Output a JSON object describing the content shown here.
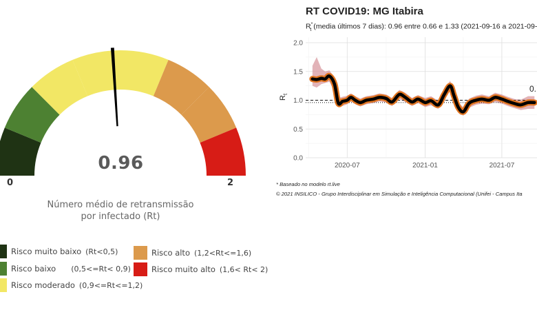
{
  "gauge": {
    "value": 0.96,
    "value_text": "0.96",
    "min": 0,
    "max": 2,
    "min_label": "0",
    "max_label": "2",
    "caption_line1": "Número médio de retransmissão",
    "caption_line2": "por infectado (Rt)",
    "bands": [
      {
        "from": 0.0,
        "to": 0.25,
        "color": "#1f3314"
      },
      {
        "from": 0.25,
        "to": 0.5,
        "color": "#4d8132"
      },
      {
        "from": 0.5,
        "to": 0.75,
        "color": "#f2e765"
      },
      {
        "from": 0.75,
        "to": 1.0,
        "color": "#f2e765"
      },
      {
        "from": 1.0,
        "to": 1.25,
        "color": "#f2e765"
      },
      {
        "from": 1.25,
        "to": 1.5,
        "color": "#dc9a4c"
      },
      {
        "from": 1.5,
        "to": 1.75,
        "color": "#dc9a4c"
      },
      {
        "from": 1.75,
        "to": 2.0,
        "color": "#d71c16"
      }
    ],
    "needle_color": "#000000"
  },
  "legend": [
    {
      "label": "Risco muito baixo",
      "range": "(Rt<0,5)",
      "color": "#1f3314"
    },
    {
      "label": "Risco baixo",
      "range": "(0,5<=Rt< 0,9)",
      "color": "#4d8132"
    },
    {
      "label": "Risco moderado",
      "range": "(0,9<=Rt<=1,2)",
      "color": "#f2e765"
    },
    {
      "label": "Risco alto",
      "range": "(1,2<Rt<=1,6)",
      "color": "#dc9a4c"
    },
    {
      "label": "Risco muito alto",
      "range": "(1,6< Rt< 2)",
      "color": "#d71c16"
    }
  ],
  "chart": {
    "title": "RT COVID19: MG Itabira",
    "subtitle_symbol": "R",
    "subtitle_sub": "t",
    "subtitle_sup": "*",
    "subtitle_text": " (media últimos 7 dias): 0.96 entre 0.66 e 1.33 (2021-09-16 a 2021-09-",
    "ylabel_main": "R",
    "ylabel_sub": "t",
    "end_label": "0.",
    "note1": "* Baseado no modelo rt.live",
    "note2": "© 2021 INSILICO - Grupo Interdisciplinar em Simulação e Inteligência Computacional (Unifei - Campus Ita"
  },
  "chart_data": {
    "type": "line",
    "title": "RT COVID19: MG Itabira",
    "ylabel": "Rt",
    "x_ticks": [
      "2020-07",
      "2021-01",
      "2021-07"
    ],
    "y_ticks": [
      "0.0",
      "0.5",
      "1.0",
      "1.5",
      "2.0"
    ],
    "ylim": [
      0,
      2.0
    ],
    "xlim": [
      "2020-03-25",
      "2021-09-22"
    ],
    "reference_lines": [
      {
        "y": 1.0,
        "style": "dashed"
      },
      {
        "y": 0.96,
        "style": "dotted"
      }
    ],
    "grid": true,
    "series": [
      {
        "line_color": "#000000",
        "outline_color": "#e0731e",
        "band_color": "#d89aa0",
        "x": [
          "2020-04-10",
          "2020-04-20",
          "2020-05-01",
          "2020-05-10",
          "2020-05-20",
          "2020-06-01",
          "2020-06-10",
          "2020-06-20",
          "2020-07-01",
          "2020-07-10",
          "2020-07-20",
          "2020-08-01",
          "2020-08-15",
          "2020-09-01",
          "2020-09-15",
          "2020-10-01",
          "2020-10-15",
          "2020-11-01",
          "2020-11-15",
          "2020-12-01",
          "2020-12-15",
          "2021-01-01",
          "2021-01-15",
          "2021-02-01",
          "2021-02-15",
          "2021-03-01",
          "2021-03-10",
          "2021-03-20",
          "2021-04-01",
          "2021-04-15",
          "2021-05-01",
          "2021-05-15",
          "2021-06-01",
          "2021-06-15",
          "2021-07-01",
          "2021-07-15",
          "2021-08-01",
          "2021-08-15",
          "2021-09-01",
          "2021-09-16"
        ],
        "y": [
          1.37,
          1.36,
          1.38,
          1.37,
          1.42,
          1.28,
          0.95,
          0.98,
          1.0,
          1.05,
          1.0,
          0.96,
          1.0,
          1.02,
          1.05,
          1.03,
          0.97,
          1.1,
          1.05,
          0.97,
          1.02,
          0.96,
          0.99,
          0.92,
          1.1,
          1.25,
          1.08,
          0.88,
          0.8,
          0.95,
          1.0,
          1.02,
          1.0,
          1.05,
          1.02,
          0.98,
          0.94,
          0.92,
          0.96,
          0.96
        ],
        "lower": [
          1.25,
          1.22,
          1.28,
          1.3,
          1.32,
          1.15,
          0.88,
          0.9,
          0.93,
          0.98,
          0.93,
          0.89,
          0.93,
          0.95,
          0.98,
          0.96,
          0.9,
          1.02,
          0.97,
          0.9,
          0.95,
          0.88,
          0.91,
          0.85,
          1.02,
          1.16,
          1.0,
          0.8,
          0.73,
          0.87,
          0.92,
          0.94,
          0.93,
          0.97,
          0.94,
          0.9,
          0.86,
          0.83,
          0.85,
          0.85
        ],
        "upper": [
          1.6,
          1.75,
          1.55,
          1.5,
          1.52,
          1.4,
          1.04,
          1.06,
          1.08,
          1.12,
          1.07,
          1.03,
          1.07,
          1.09,
          1.12,
          1.1,
          1.04,
          1.18,
          1.13,
          1.04,
          1.09,
          1.04,
          1.07,
          0.99,
          1.18,
          1.34,
          1.16,
          0.96,
          0.88,
          1.03,
          1.08,
          1.1,
          1.07,
          1.13,
          1.1,
          1.06,
          1.02,
          1.01,
          1.07,
          1.07
        ]
      }
    ]
  }
}
